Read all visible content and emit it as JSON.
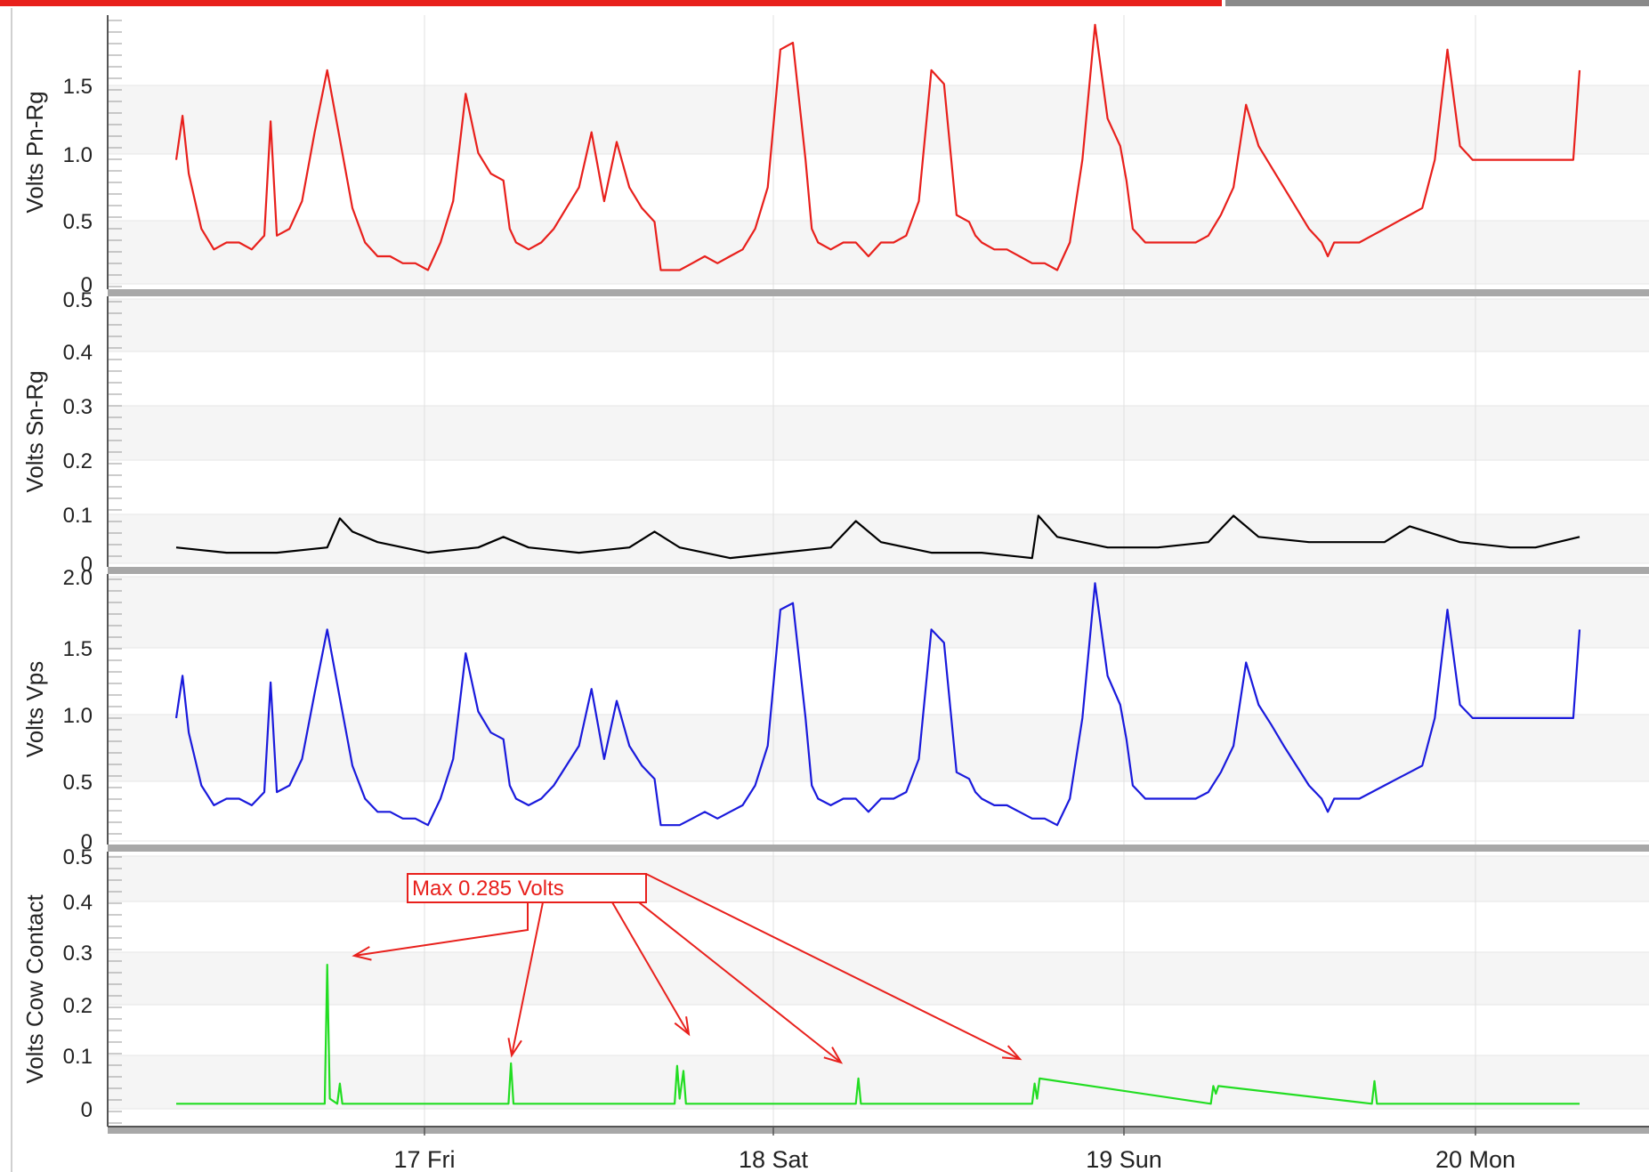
{
  "colors": {
    "pn_rg": "#e8201c",
    "sn_rg": "#000000",
    "vps": "#1a1adc",
    "cow_contact": "#22dd22",
    "annotation": "#e8201c",
    "band": "#f5f5f5",
    "separator": "#a8a8a8"
  },
  "x_axis": {
    "ticks": [
      "17 Fri",
      "18 Sat",
      "19 Sun",
      "20 Mon"
    ],
    "range": [
      "16 Thu 05:00",
      "20 Mon 12:00"
    ],
    "grid": true
  },
  "annotation": {
    "text": "Max 0.285 Volts",
    "arrows": 5
  },
  "chart_data": [
    {
      "type": "line",
      "ylabel": "Volts Pn-Rg",
      "y_ticks": [
        "1.5",
        "1.0",
        "0.5",
        "0"
      ],
      "ylim": [
        0,
        1.95
      ],
      "series": [
        {
          "color": "#e8201c",
          "x": [
            0.0,
            0.5,
            1.0,
            2.0,
            3.0,
            4.0,
            5.0,
            6.0,
            7.0,
            7.5,
            8.0,
            9.0,
            10.0,
            11.0,
            12.0,
            13.0,
            14.0,
            15.0,
            16.0,
            17.0,
            18.0,
            19.0,
            20.0,
            21.0,
            22.0,
            23.0,
            24.0,
            25.0,
            26.0,
            26.5,
            27.0,
            28.0,
            29.0,
            30.0,
            31.0,
            32.0,
            33.0,
            34.0,
            35.0,
            36.0,
            37.0,
            38.0,
            38.5,
            39.0,
            40.0,
            41.0,
            42.0,
            43.0,
            44.0,
            45.0,
            46.0,
            47.0,
            48.0,
            49.0,
            50.0,
            50.5,
            51.0,
            52.0,
            53.0,
            54.0,
            55.0,
            56.0,
            57.0,
            58.0,
            59.0,
            60.0,
            61.0,
            62.0,
            63.0,
            63.5,
            64.0,
            65.0,
            66.0,
            67.0,
            68.0,
            69.0,
            70.0,
            71.0,
            72.0,
            73.0,
            74.0,
            75.0,
            75.5,
            76.0,
            77.0,
            78.0,
            79.0,
            80.0,
            81.0,
            82.0,
            83.0,
            84.0,
            85.0,
            86.0,
            87.0,
            88.0,
            89.0,
            90.0,
            91.0,
            91.5,
            92.0,
            93.0,
            94.0,
            95.0,
            96.0,
            97.0,
            98.0,
            99.0,
            100.0,
            101.0,
            102.0,
            103.0,
            104.0,
            105.0,
            106.0,
            107.0,
            108.0,
            109.0,
            110.0,
            111.0,
            111.5
          ],
          "y": [
            0.9,
            1.22,
            0.8,
            0.4,
            0.25,
            0.3,
            0.3,
            0.25,
            0.35,
            1.18,
            0.35,
            0.4,
            0.6,
            1.1,
            1.55,
            1.05,
            0.55,
            0.3,
            0.2,
            0.2,
            0.15,
            0.15,
            0.1,
            0.3,
            0.6,
            1.38,
            0.95,
            0.8,
            0.75,
            0.4,
            0.3,
            0.25,
            0.3,
            0.4,
            0.55,
            0.7,
            1.1,
            0.6,
            1.03,
            0.7,
            0.55,
            0.45,
            0.1,
            0.1,
            0.1,
            0.15,
            0.2,
            0.15,
            0.2,
            0.25,
            0.4,
            0.7,
            1.7,
            1.75,
            0.9,
            0.4,
            0.3,
            0.25,
            0.3,
            0.3,
            0.2,
            0.3,
            0.3,
            0.35,
            0.6,
            1.55,
            1.45,
            0.5,
            0.45,
            0.35,
            0.3,
            0.25,
            0.25,
            0.2,
            0.15,
            0.15,
            0.1,
            0.3,
            0.9,
            1.88,
            1.2,
            1.0,
            0.75,
            0.4,
            0.3,
            0.3,
            0.3,
            0.3,
            0.3,
            0.35,
            0.5,
            0.7,
            1.3,
            1.0,
            0.85,
            0.7,
            0.55,
            0.4,
            0.3,
            0.2,
            0.3,
            0.3,
            0.3,
            0.35,
            0.4,
            0.45,
            0.5,
            0.55,
            0.9,
            1.7,
            1.0,
            0.9,
            0.9,
            0.9,
            0.9,
            0.9,
            0.9,
            0.9,
            0.9,
            0.9,
            1.55
          ]
        }
      ]
    },
    {
      "type": "line",
      "ylabel": "Volts Sn-Rg",
      "y_ticks": [
        "0.5",
        "0.4",
        "0.3",
        "0.2",
        "0.1",
        "0"
      ],
      "ylim": [
        0,
        0.5
      ],
      "series": [
        {
          "color": "#000000",
          "x": [
            0,
            4,
            8,
            12,
            13,
            14,
            16,
            20,
            24,
            26,
            28,
            32,
            36,
            38,
            40,
            44,
            48,
            52,
            54,
            56,
            60,
            64,
            68,
            68.5,
            70,
            74,
            78,
            82,
            84,
            86,
            90,
            94,
            96,
            98,
            102,
            106,
            108,
            111.5
          ],
          "y": [
            0.03,
            0.02,
            0.02,
            0.03,
            0.085,
            0.06,
            0.04,
            0.02,
            0.03,
            0.05,
            0.03,
            0.02,
            0.03,
            0.06,
            0.03,
            0.01,
            0.02,
            0.03,
            0.08,
            0.04,
            0.02,
            0.02,
            0.01,
            0.09,
            0.05,
            0.03,
            0.03,
            0.04,
            0.09,
            0.05,
            0.04,
            0.04,
            0.04,
            0.07,
            0.04,
            0.03,
            0.03,
            0.05
          ]
        }
      ]
    },
    {
      "type": "line",
      "ylabel": "Volts Vps",
      "y_ticks": [
        "2.0",
        "1.5",
        "1.0",
        "0.5",
        "0"
      ],
      "ylim": [
        0,
        2.0
      ],
      "series": [
        {
          "color": "#1a1adc",
          "x": [
            0.0,
            0.5,
            1.0,
            2.0,
            3.0,
            4.0,
            5.0,
            6.0,
            7.0,
            7.5,
            8.0,
            9.0,
            10.0,
            11.0,
            12.0,
            13.0,
            14.0,
            15.0,
            16.0,
            17.0,
            18.0,
            19.0,
            20.0,
            21.0,
            22.0,
            23.0,
            24.0,
            25.0,
            26.0,
            26.5,
            27.0,
            28.0,
            29.0,
            30.0,
            31.0,
            32.0,
            33.0,
            34.0,
            35.0,
            36.0,
            37.0,
            38.0,
            38.5,
            39.0,
            40.0,
            41.0,
            42.0,
            43.0,
            44.0,
            45.0,
            46.0,
            47.0,
            48.0,
            49.0,
            50.0,
            50.5,
            51.0,
            52.0,
            53.0,
            54.0,
            55.0,
            56.0,
            57.0,
            58.0,
            59.0,
            60.0,
            61.0,
            62.0,
            63.0,
            63.5,
            64.0,
            65.0,
            66.0,
            67.0,
            68.0,
            69.0,
            70.0,
            71.0,
            72.0,
            73.0,
            74.0,
            75.0,
            75.5,
            76.0,
            77.0,
            78.0,
            79.0,
            80.0,
            81.0,
            82.0,
            83.0,
            84.0,
            85.0,
            86.0,
            87.0,
            88.0,
            89.0,
            90.0,
            91.0,
            91.5,
            92.0,
            93.0,
            94.0,
            95.0,
            96.0,
            97.0,
            98.0,
            99.0,
            100.0,
            101.0,
            102.0,
            103.0,
            104.0,
            105.0,
            106.0,
            107.0,
            108.0,
            109.0,
            110.0,
            111.0,
            111.5
          ],
          "y": [
            0.93,
            1.25,
            0.82,
            0.42,
            0.27,
            0.32,
            0.32,
            0.27,
            0.37,
            1.2,
            0.37,
            0.42,
            0.62,
            1.12,
            1.6,
            1.08,
            0.57,
            0.32,
            0.22,
            0.22,
            0.17,
            0.17,
            0.12,
            0.32,
            0.62,
            1.42,
            0.98,
            0.82,
            0.77,
            0.42,
            0.32,
            0.27,
            0.32,
            0.42,
            0.57,
            0.72,
            1.15,
            0.62,
            1.06,
            0.72,
            0.57,
            0.47,
            0.12,
            0.12,
            0.12,
            0.17,
            0.22,
            0.17,
            0.22,
            0.27,
            0.42,
            0.72,
            1.75,
            1.8,
            0.93,
            0.42,
            0.32,
            0.27,
            0.32,
            0.32,
            0.22,
            0.32,
            0.32,
            0.37,
            0.62,
            1.6,
            1.5,
            0.52,
            0.47,
            0.37,
            0.32,
            0.27,
            0.27,
            0.22,
            0.17,
            0.17,
            0.12,
            0.32,
            0.93,
            1.95,
            1.25,
            1.03,
            0.77,
            0.42,
            0.32,
            0.32,
            0.32,
            0.32,
            0.32,
            0.37,
            0.52,
            0.72,
            1.35,
            1.03,
            0.88,
            0.72,
            0.57,
            0.42,
            0.32,
            0.22,
            0.32,
            0.32,
            0.32,
            0.37,
            0.42,
            0.47,
            0.52,
            0.57,
            0.93,
            1.75,
            1.03,
            0.93,
            0.93,
            0.93,
            0.93,
            0.93,
            0.93,
            0.93,
            0.93,
            0.93,
            1.6
          ]
        }
      ]
    },
    {
      "type": "line",
      "ylabel": "Volts Cow Contact",
      "y_ticks": [
        "0.5",
        "0.4",
        "0.3",
        "0.2",
        "0.1",
        "0"
      ],
      "ylim": [
        0,
        0.5
      ],
      "series": [
        {
          "color": "#22dd22",
          "x": [
            0,
            11.8,
            12.0,
            12.2,
            12.8,
            13.0,
            13.2,
            26.4,
            26.6,
            26.8,
            39.6,
            39.8,
            40.0,
            40.3,
            40.5,
            54.0,
            54.2,
            54.4,
            68.0,
            68.2,
            68.4,
            68.6,
            82.2,
            82.4,
            82.6,
            82.8,
            95.0,
            95.2,
            95.4,
            111.5
          ],
          "y": [
            0.01,
            0.01,
            0.285,
            0.02,
            0.01,
            0.05,
            0.01,
            0.01,
            0.09,
            0.01,
            0.01,
            0.085,
            0.02,
            0.075,
            0.01,
            0.01,
            0.06,
            0.01,
            0.01,
            0.05,
            0.02,
            0.06,
            0.01,
            0.045,
            0.03,
            0.045,
            0.01,
            0.055,
            0.01,
            0.01
          ]
        }
      ]
    }
  ]
}
